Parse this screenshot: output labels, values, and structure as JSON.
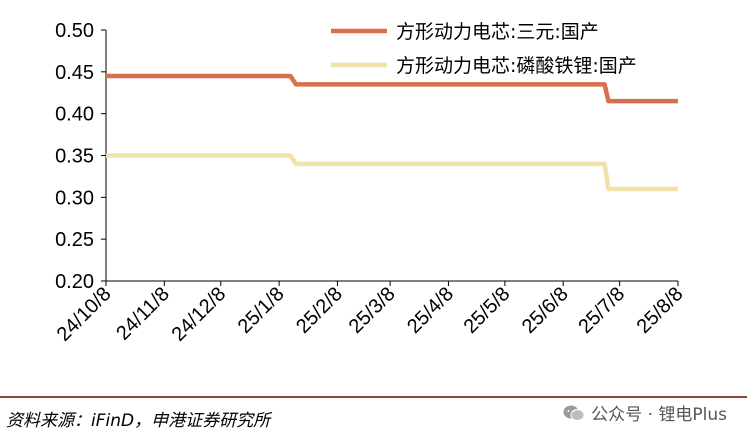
{
  "chart_data": {
    "type": "line",
    "x": [
      "24/10/8",
      "24/11/8",
      "24/12/8",
      "25/1/8",
      "25/2/8",
      "25/3/8",
      "25/4/8",
      "25/5/8",
      "25/6/8",
      "25/7/8",
      "25/8/8"
    ],
    "series": [
      {
        "name": "方形动力电芯:三元:国产",
        "color": "#d8704e",
        "points": [
          {
            "x": "2024-10-08",
            "y": 0.445
          },
          {
            "x": "2025-01-14",
            "y": 0.445
          },
          {
            "x": "2025-01-17",
            "y": 0.435
          },
          {
            "x": "2025-06-30",
            "y": 0.435
          },
          {
            "x": "2025-07-02",
            "y": 0.415
          },
          {
            "x": "2025-08-08",
            "y": 0.415
          }
        ]
      },
      {
        "name": "方形动力电芯:磷酸铁锂:国产",
        "color": "#f0e2a8",
        "points": [
          {
            "x": "2024-10-08",
            "y": 0.35
          },
          {
            "x": "2025-01-14",
            "y": 0.35
          },
          {
            "x": "2025-01-17",
            "y": 0.34
          },
          {
            "x": "2025-06-30",
            "y": 0.34
          },
          {
            "x": "2025-07-02",
            "y": 0.31
          },
          {
            "x": "2025-08-08",
            "y": 0.31
          }
        ]
      }
    ],
    "yticks": [
      "0.50",
      "0.45",
      "0.40",
      "0.35",
      "0.30",
      "0.25",
      "0.20"
    ],
    "ylim": [
      0.2,
      0.5
    ],
    "grid": false,
    "legend_position": "top-right"
  },
  "source_text": "资料来源：iFinD，申港证券研究所",
  "watermark": {
    "text": "公众号 · 锂电Plus",
    "icon": "wechat-icon"
  },
  "colors": {
    "axis": "#000000",
    "divider": "#8b4a2e"
  }
}
